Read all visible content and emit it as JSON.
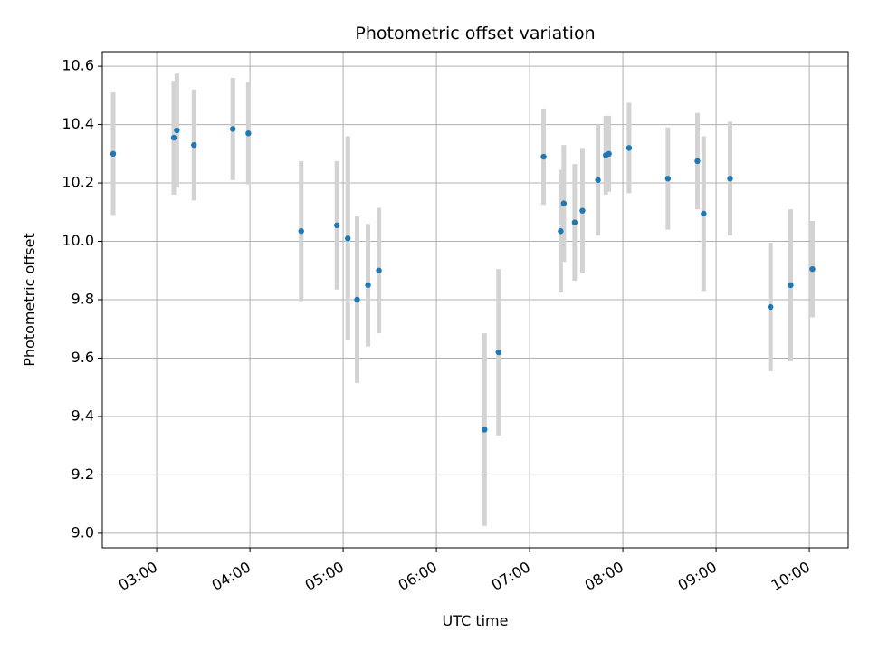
{
  "chart_data": {
    "type": "scatter",
    "title": "Photometric offset variation",
    "xlabel": "UTC time",
    "ylabel": "Photometric offset",
    "x_is_time": true,
    "xlim": [
      "02:25",
      "10:25"
    ],
    "ylim": [
      8.95,
      10.65
    ],
    "x_ticks": [
      "03:00",
      "04:00",
      "05:00",
      "06:00",
      "07:00",
      "08:00",
      "09:00",
      "10:00"
    ],
    "y_ticks": [
      "9.0",
      "9.2",
      "9.4",
      "9.6",
      "9.8",
      "10.0",
      "10.2",
      "10.4",
      "10.6"
    ],
    "grid": true,
    "point_color": "#1f77b4",
    "errorbar_color": "#d3d3d3",
    "points": [
      {
        "t": "02:32",
        "y": 10.3,
        "err": 0.21
      },
      {
        "t": "03:11",
        "y": 10.355,
        "err": 0.195
      },
      {
        "t": "03:13",
        "y": 10.38,
        "err": 0.195
      },
      {
        "t": "03:24",
        "y": 10.33,
        "err": 0.19
      },
      {
        "t": "03:49",
        "y": 10.385,
        "err": 0.175
      },
      {
        "t": "03:59",
        "y": 10.37,
        "err": 0.175
      },
      {
        "t": "04:33",
        "y": 10.035,
        "err": 0.24
      },
      {
        "t": "04:56",
        "y": 10.055,
        "err": 0.22
      },
      {
        "t": "05:03",
        "y": 10.01,
        "err": 0.35
      },
      {
        "t": "05:09",
        "y": 9.8,
        "err": 0.285
      },
      {
        "t": "05:16",
        "y": 9.85,
        "err": 0.21
      },
      {
        "t": "05:23",
        "y": 9.9,
        "err": 0.215
      },
      {
        "t": "06:31",
        "y": 9.355,
        "err": 0.33
      },
      {
        "t": "06:40",
        "y": 9.62,
        "err": 0.285
      },
      {
        "t": "07:09",
        "y": 10.29,
        "err": 0.165
      },
      {
        "t": "07:20",
        "y": 10.035,
        "err": 0.21
      },
      {
        "t": "07:22",
        "y": 10.13,
        "err": 0.2
      },
      {
        "t": "07:29",
        "y": 10.065,
        "err": 0.2
      },
      {
        "t": "07:34",
        "y": 10.105,
        "err": 0.215
      },
      {
        "t": "07:44",
        "y": 10.21,
        "err": 0.19
      },
      {
        "t": "07:49",
        "y": 10.295,
        "err": 0.135
      },
      {
        "t": "07:51",
        "y": 10.3,
        "err": 0.13
      },
      {
        "t": "08:04",
        "y": 10.32,
        "err": 0.155
      },
      {
        "t": "08:29",
        "y": 10.215,
        "err": 0.175
      },
      {
        "t": "08:48",
        "y": 10.275,
        "err": 0.165
      },
      {
        "t": "08:52",
        "y": 10.095,
        "err": 0.265
      },
      {
        "t": "09:09",
        "y": 10.215,
        "err": 0.195
      },
      {
        "t": "09:35",
        "y": 9.775,
        "err": 0.22
      },
      {
        "t": "09:48",
        "y": 9.85,
        "err": 0.26
      },
      {
        "t": "10:02",
        "y": 9.905,
        "err": 0.165
      }
    ]
  }
}
